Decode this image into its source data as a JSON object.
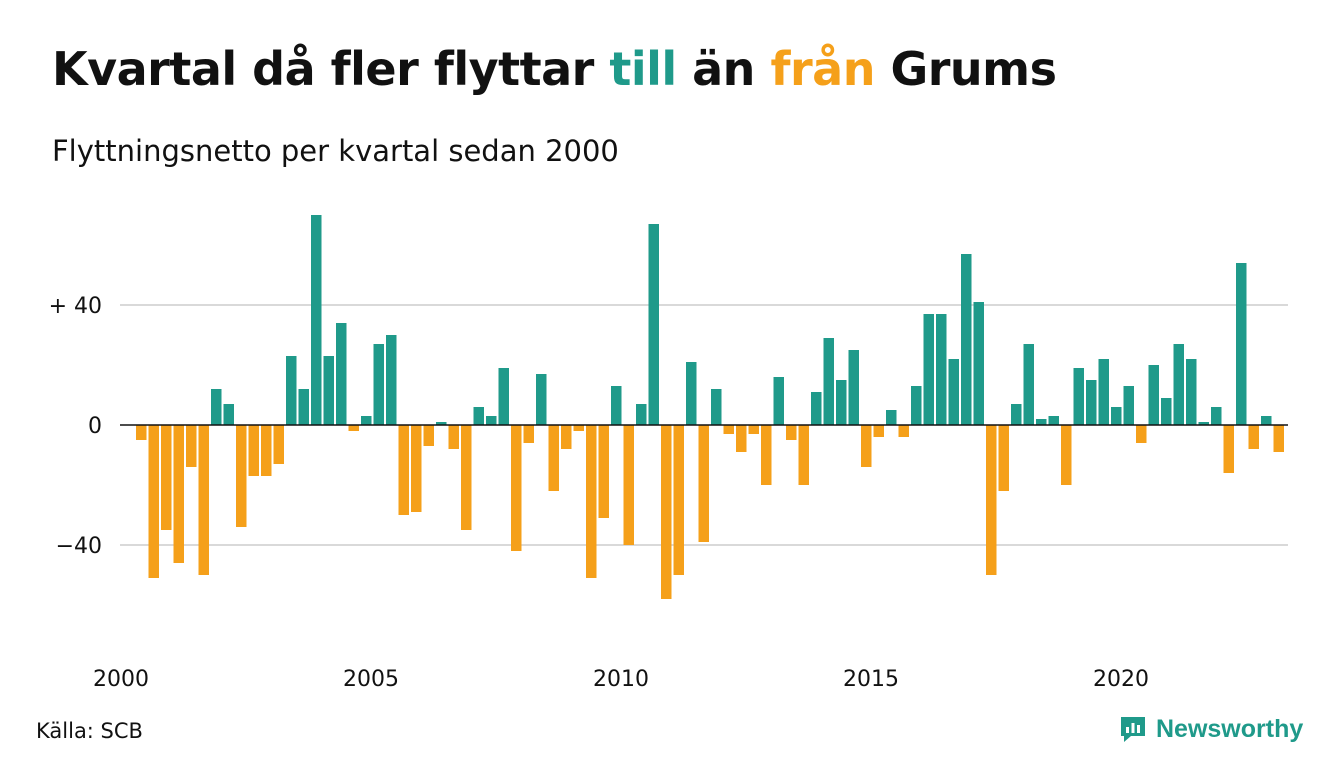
{
  "title": {
    "part1": "Kvartal då fler flyttar ",
    "pos_word": "till",
    "part2": " än ",
    "neg_word": "från",
    "part3": " Grums"
  },
  "subtitle": "Flyttningsnetto per kvartal sedan 2000",
  "source": "Källa: SCB",
  "brand": "Newsworthy",
  "colors": {
    "positive": "#1f9a8a",
    "negative": "#f5a01a",
    "grid": "#d9d9d9",
    "axis": "#111111"
  },
  "chart_data": {
    "type": "bar",
    "ylim": [
      -68,
      72
    ],
    "y_ticks": [
      {
        "value": 40,
        "label": "+ 40"
      },
      {
        "value": 0,
        "label": "0"
      },
      {
        "value": -40,
        "label": "−40"
      }
    ],
    "x_ticks": [
      {
        "year": 2000,
        "label": "2000"
      },
      {
        "year": 2005,
        "label": "2005"
      },
      {
        "year": 2010,
        "label": "2010"
      },
      {
        "year": 2015,
        "label": "2015"
      },
      {
        "year": 2020,
        "label": "2020"
      }
    ],
    "start_year": 2000,
    "values": [
      -5,
      -51,
      -35,
      -46,
      -14,
      -50,
      12,
      7,
      -34,
      -17,
      -17,
      -13,
      23,
      12,
      70,
      23,
      34,
      -2,
      3,
      27,
      30,
      -30,
      -29,
      -7,
      1,
      -8,
      -35,
      6,
      3,
      19,
      -42,
      -6,
      17,
      -22,
      -8,
      -2,
      -51,
      -31,
      13,
      -40,
      7,
      67,
      -58,
      -50,
      21,
      -39,
      12,
      -3,
      -9,
      -3,
      -20,
      16,
      -5,
      -20,
      11,
      29,
      15,
      25,
      -14,
      -4,
      5,
      -4,
      13,
      37,
      37,
      22,
      57,
      41,
      -50,
      -22,
      7,
      27,
      2,
      3,
      -20,
      19,
      15,
      22,
      6,
      13,
      -6,
      20,
      9,
      27,
      22,
      1,
      6,
      -16,
      54,
      -8,
      3,
      -9
    ]
  }
}
